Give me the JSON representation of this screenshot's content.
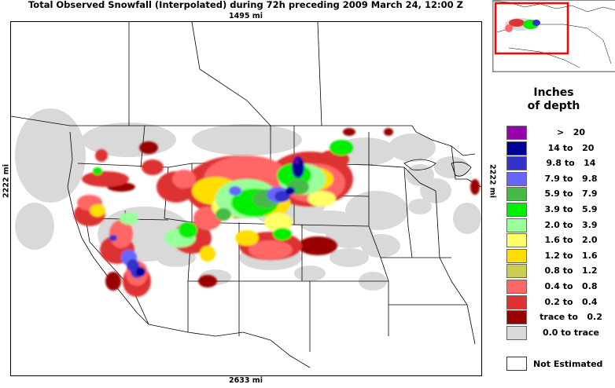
{
  "title": "Total Observed Snowfall (Interpolated) during 72h preceding 2009 March 24, 12:00 Z",
  "distances": {
    "top": "1495 mi",
    "bottom": "2633 mi",
    "left": "2222 mi",
    "right": "2222 mi"
  },
  "legend": {
    "title_line1": "Inches",
    "title_line2": "of depth",
    "items": [
      {
        "label": ">   20",
        "color": "#9900aa"
      },
      {
        "label": "14 to   20",
        "color": "#000099"
      },
      {
        "label": "9.8 to   14",
        "color": "#3333cc"
      },
      {
        "label": "7.9 to   9.8",
        "color": "#6666ff"
      },
      {
        "label": "5.9 to   7.9",
        "color": "#44bb44"
      },
      {
        "label": "3.9 to   5.9",
        "color": "#00ee00"
      },
      {
        "label": "2.0 to   3.9",
        "color": "#99ff99"
      },
      {
        "label": "1.6 to   2.0",
        "color": "#ffff66"
      },
      {
        "label": "1.2 to   1.6",
        "color": "#ffdd00"
      },
      {
        "label": "0.8 to   1.2",
        "color": "#cccc55"
      },
      {
        "label": "0.4 to   0.8",
        "color": "#ff6666"
      },
      {
        "label": "0.2 to   0.4",
        "color": "#dd3333"
      },
      {
        "label": "trace to   0.2",
        "color": "#990000"
      },
      {
        "label": "0.0 to trace",
        "color": "#d9d9d9"
      }
    ],
    "not_estimated": {
      "label": "Not Estimated",
      "color": "#ffffff"
    }
  }
}
